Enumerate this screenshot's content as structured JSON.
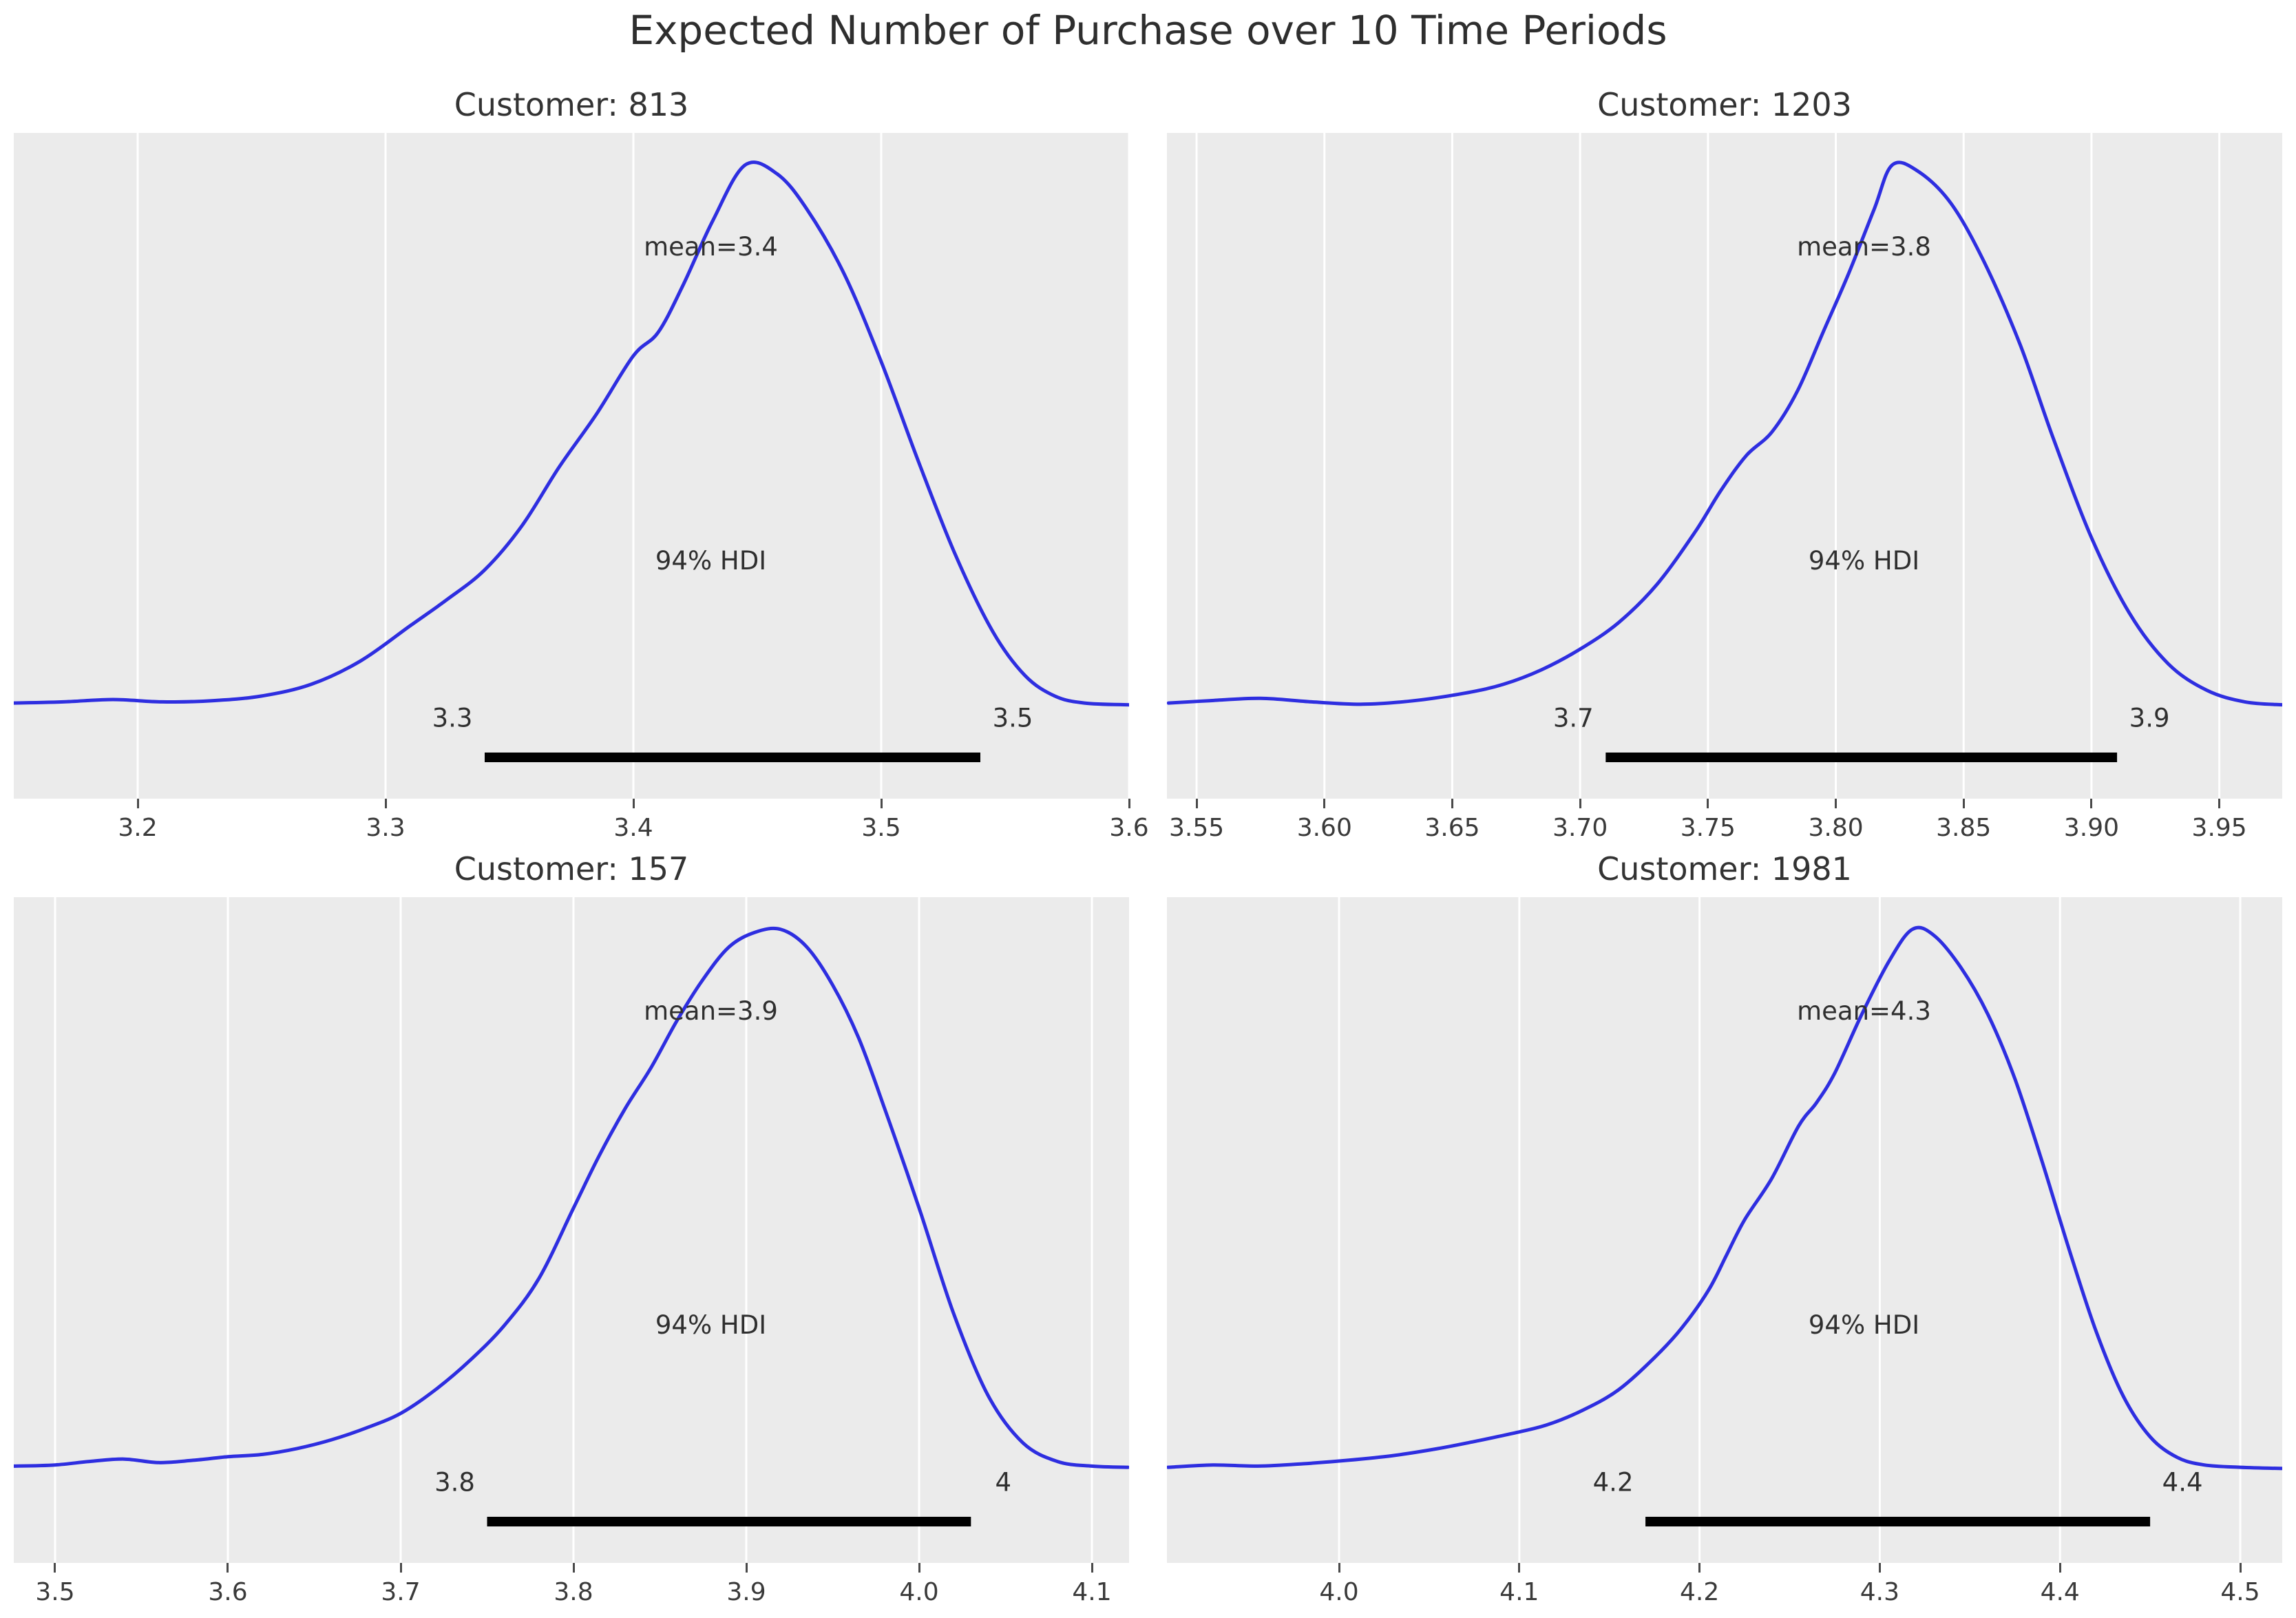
{
  "figure": {
    "title": "Expected Number of Purchase over 10 Time Periods"
  },
  "style": {
    "plot_background": "#ebebeb",
    "grid_color": "#ffffff",
    "curve_color": "#2e2ee0",
    "hdi_bar_color": "#000000",
    "text_color": "#2f2f2f"
  },
  "chart_data": [
    {
      "type": "area",
      "kind": "kde-posterior",
      "title": "Customer: 813",
      "mean": 3.4,
      "mean_label": "mean=3.4",
      "hdi_text": "94% HDI",
      "hdi_probability": "94%",
      "hdi": [
        3.34,
        3.54
      ],
      "hdi_lower_label": "3.3",
      "hdi_upper_label": "3.5",
      "xlim": [
        3.15,
        3.6
      ],
      "xticks": [
        3.2,
        3.3,
        3.4,
        3.5,
        3.6
      ],
      "xtick_labels": [
        "3.2",
        "3.3",
        "3.4",
        "3.5",
        "3.6"
      ],
      "curve": {
        "x": [
          3.15,
          3.17,
          3.19,
          3.21,
          3.23,
          3.25,
          3.27,
          3.29,
          3.31,
          3.325,
          3.34,
          3.355,
          3.37,
          3.385,
          3.4,
          3.41,
          3.42,
          3.432,
          3.445,
          3.458,
          3.47,
          3.485,
          3.5,
          3.515,
          3.53,
          3.545,
          3.558,
          3.57,
          3.582,
          3.6
        ],
        "density": [
          0.028,
          0.03,
          0.034,
          0.03,
          0.032,
          0.04,
          0.06,
          0.1,
          0.16,
          0.205,
          0.255,
          0.33,
          0.43,
          0.52,
          0.62,
          0.66,
          0.74,
          0.85,
          0.945,
          0.93,
          0.87,
          0.76,
          0.61,
          0.44,
          0.28,
          0.15,
          0.075,
          0.04,
          0.028,
          0.025
        ]
      }
    },
    {
      "type": "area",
      "kind": "kde-posterior",
      "title": "Customer: 1203",
      "mean": 3.8,
      "mean_label": "mean=3.8",
      "hdi_text": "94% HDI",
      "hdi_probability": "94%",
      "hdi": [
        3.71,
        3.91
      ],
      "hdi_lower_label": "3.7",
      "hdi_upper_label": "3.9",
      "xlim": [
        3.5384,
        3.9746
      ],
      "xticks": [
        3.55,
        3.6,
        3.65,
        3.7,
        3.75,
        3.8,
        3.85,
        3.9,
        3.95
      ],
      "xtick_labels": [
        "3.55",
        "3.60",
        "3.65",
        "3.70",
        "3.75",
        "3.80",
        "3.85",
        "3.90",
        "3.95"
      ],
      "curve": {
        "x": [
          3.539,
          3.555,
          3.575,
          3.595,
          3.615,
          3.635,
          3.655,
          3.67,
          3.685,
          3.7,
          3.715,
          3.73,
          3.745,
          3.755,
          3.765,
          3.775,
          3.785,
          3.795,
          3.805,
          3.815,
          3.822,
          3.832,
          3.845,
          3.858,
          3.872,
          3.885,
          3.9,
          3.915,
          3.93,
          3.945,
          3.96,
          3.975
        ],
        "density": [
          0.028,
          0.032,
          0.036,
          0.03,
          0.026,
          0.032,
          0.045,
          0.06,
          0.085,
          0.12,
          0.165,
          0.23,
          0.32,
          0.39,
          0.45,
          0.49,
          0.56,
          0.66,
          0.76,
          0.87,
          0.945,
          0.935,
          0.88,
          0.78,
          0.64,
          0.48,
          0.31,
          0.18,
          0.095,
          0.05,
          0.03,
          0.025
        ]
      }
    },
    {
      "type": "area",
      "kind": "kde-posterior",
      "title": "Customer: 157",
      "mean": 3.9,
      "mean_label": "mean=3.9",
      "hdi_text": "94% HDI",
      "hdi_probability": "94%",
      "hdi": [
        3.75,
        4.03
      ],
      "hdi_lower_label": "3.8",
      "hdi_upper_label": "4",
      "xlim": [
        3.4761,
        4.1215
      ],
      "xticks": [
        3.5,
        3.6,
        3.7,
        3.8,
        3.9,
        4.0,
        4.1
      ],
      "xtick_labels": [
        "3.5",
        "3.6",
        "3.7",
        "3.8",
        "3.9",
        "4.0",
        "4.1"
      ],
      "curve": {
        "x": [
          3.476,
          3.5,
          3.52,
          3.54,
          3.56,
          3.58,
          3.6,
          3.62,
          3.64,
          3.66,
          3.68,
          3.7,
          3.72,
          3.74,
          3.76,
          3.78,
          3.8,
          3.815,
          3.83,
          3.845,
          3.86,
          3.875,
          3.89,
          3.905,
          3.92,
          3.935,
          3.95,
          3.965,
          3.98,
          4.0,
          4.02,
          4.04,
          4.06,
          4.08,
          4.1,
          4.121
        ],
        "density": [
          0.03,
          0.032,
          0.038,
          0.042,
          0.036,
          0.04,
          0.046,
          0.05,
          0.06,
          0.075,
          0.095,
          0.12,
          0.16,
          0.21,
          0.27,
          0.35,
          0.47,
          0.56,
          0.64,
          0.71,
          0.79,
          0.86,
          0.915,
          0.94,
          0.945,
          0.915,
          0.85,
          0.76,
          0.64,
          0.47,
          0.29,
          0.15,
          0.07,
          0.038,
          0.03,
          0.028
        ]
      }
    },
    {
      "type": "area",
      "kind": "kde-posterior",
      "title": "Customer: 1981",
      "mean": 4.3,
      "mean_label": "mean=4.3",
      "hdi_text": "94% HDI",
      "hdi_probability": "94%",
      "hdi": [
        4.17,
        4.45
      ],
      "hdi_lower_label": "4.2",
      "hdi_upper_label": "4.4",
      "xlim": [
        3.9045,
        4.5233
      ],
      "xticks": [
        4.0,
        4.1,
        4.2,
        4.3,
        4.4,
        4.5
      ],
      "xtick_labels": [
        "4.0",
        "4.1",
        "4.2",
        "4.3",
        "4.4",
        "4.5"
      ],
      "curve": {
        "x": [
          3.905,
          3.93,
          3.955,
          3.98,
          4.005,
          4.03,
          4.055,
          4.075,
          4.095,
          4.115,
          4.135,
          4.155,
          4.175,
          4.19,
          4.205,
          4.215,
          4.225,
          4.24,
          4.255,
          4.265,
          4.275,
          4.29,
          4.305,
          4.318,
          4.33,
          4.345,
          4.36,
          4.375,
          4.39,
          4.405,
          4.42,
          4.435,
          4.45,
          4.465,
          4.48,
          4.5,
          4.523
        ],
        "density": [
          0.028,
          0.032,
          0.03,
          0.034,
          0.04,
          0.048,
          0.06,
          0.072,
          0.085,
          0.1,
          0.125,
          0.16,
          0.215,
          0.265,
          0.33,
          0.39,
          0.45,
          0.52,
          0.61,
          0.65,
          0.7,
          0.8,
          0.89,
          0.945,
          0.935,
          0.88,
          0.8,
          0.69,
          0.55,
          0.4,
          0.26,
          0.15,
          0.08,
          0.045,
          0.032,
          0.028,
          0.026
        ]
      }
    }
  ]
}
